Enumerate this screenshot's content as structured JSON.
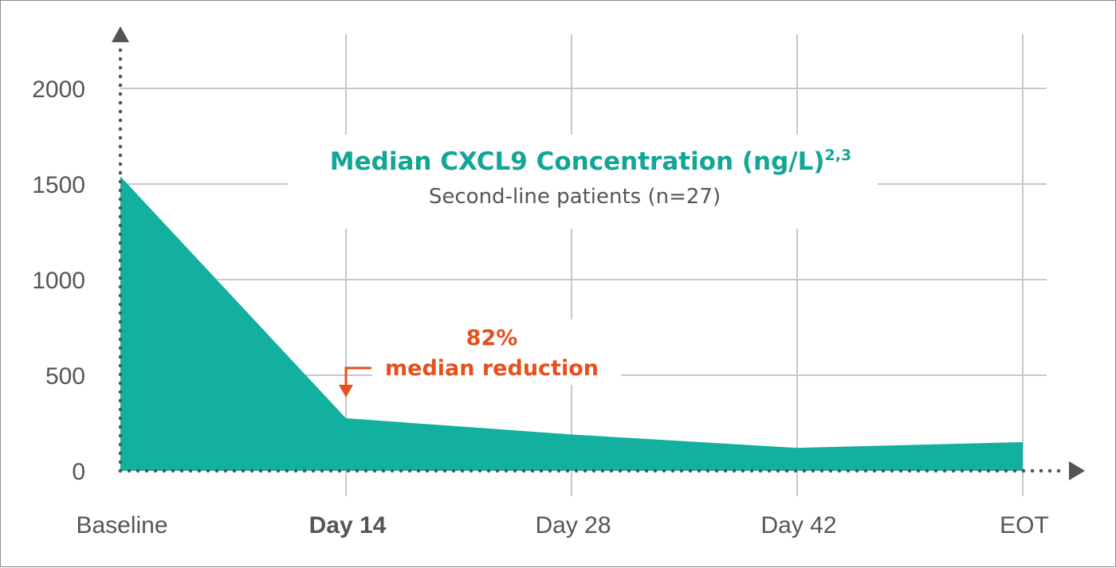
{
  "chart_data": {
    "type": "area",
    "title": "Median CXCL9 Concentration (ng/L)",
    "title_superscript": "2,3",
    "subtitle": "Second-line patients (n=27)",
    "categories": [
      "Baseline",
      "Day 14",
      "Day 28",
      "Day 42",
      "EOT"
    ],
    "highlight_category": "Day 14",
    "series": [
      {
        "values": [
          1540,
          275,
          190,
          120,
          150
        ]
      }
    ],
    "yticks": [
      0,
      500,
      1000,
      1500,
      2000
    ],
    "ylim": [
      0,
      2000
    ],
    "grid": true,
    "annotation": {
      "category": "Day 14",
      "line1": "82%",
      "line2": "median reduction"
    },
    "colors": {
      "area": "#13b09f",
      "title": "#13a596",
      "highlight": "#e5501e",
      "grid": "#c8c8c8",
      "axis": "#555555"
    }
  }
}
